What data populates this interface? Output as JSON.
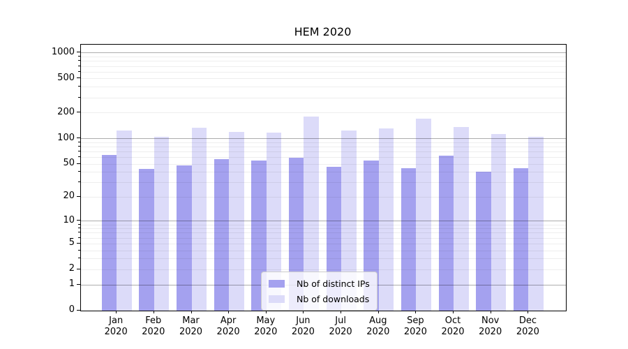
{
  "title": "HEM 2020",
  "chart_data": {
    "type": "bar",
    "title": "HEM 2020",
    "yscale": "log1p",
    "ylim": [
      0,
      1100
    ],
    "grid": true,
    "legend_position": "lower center",
    "year": "2020",
    "months": [
      "Jan",
      "Feb",
      "Mar",
      "Apr",
      "May",
      "Jun",
      "Jul",
      "Aug",
      "Sep",
      "Oct",
      "Nov",
      "Dec"
    ],
    "categories": [
      "Jan 2020",
      "Feb 2020",
      "Mar 2020",
      "Apr 2020",
      "May 2020",
      "Jun 2020",
      "Jul 2020",
      "Aug 2020",
      "Sep 2020",
      "Oct 2020",
      "Nov 2020",
      "Dec 2020"
    ],
    "yticks": [
      0,
      1,
      2,
      5,
      10,
      20,
      50,
      100,
      200,
      500,
      1000
    ],
    "series": [
      {
        "name": "Nb of distinct IPs",
        "color": "#a4a1ef",
        "values": [
          63,
          43,
          48,
          57,
          54,
          59,
          46,
          54,
          44,
          62,
          40,
          44
        ]
      },
      {
        "name": "Nb of downloads",
        "color": "#dcdbf9",
        "values": [
          122,
          103,
          133,
          118,
          117,
          178,
          124,
          130,
          169,
          135,
          111,
          103
        ]
      }
    ]
  },
  "colors": {
    "axis": "#000000",
    "major_grid": "#aaaaaa",
    "minor_grid": "#e8e8e8",
    "legend_border": "#cccccc"
  }
}
